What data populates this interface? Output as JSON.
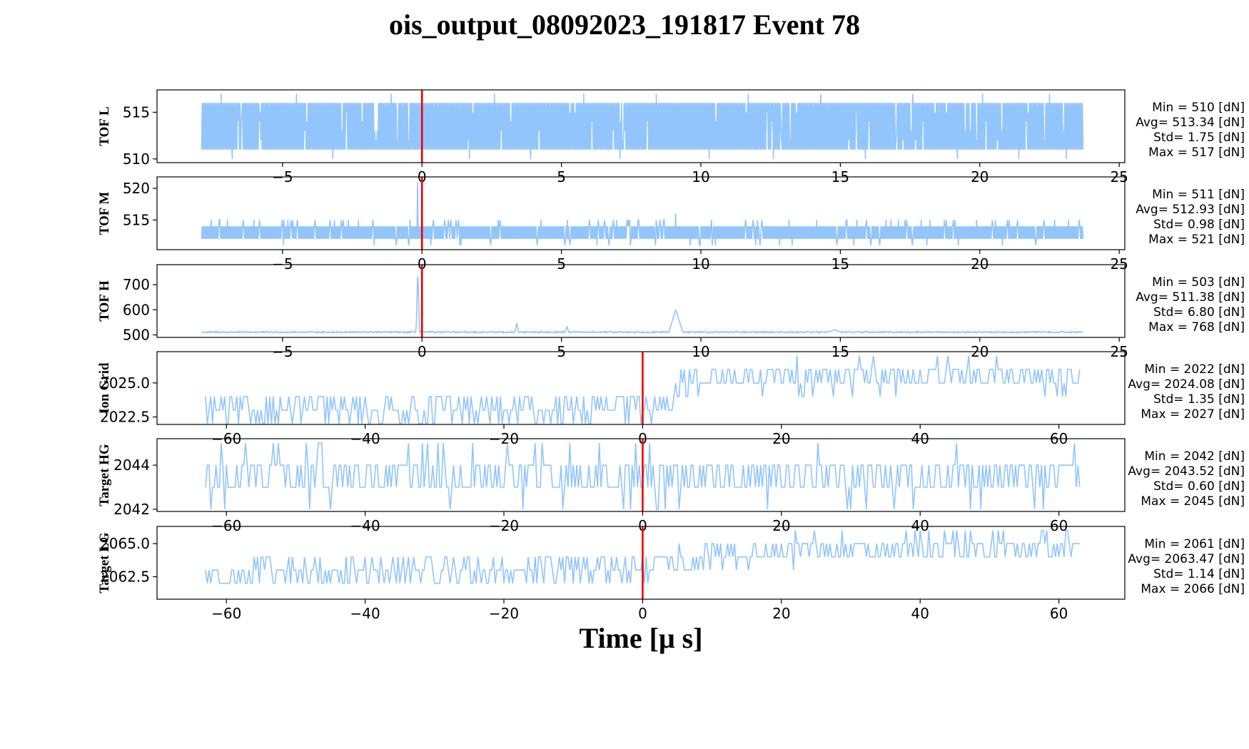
{
  "figure": {
    "title": "ois_output_08092023_191817 Event 78",
    "xlabel": "Time [μ s]"
  },
  "colors": {
    "trace": "#92c5fb",
    "marker": "#ee0000",
    "axes": "#000000",
    "background": "#ffffff"
  },
  "chart_data": [
    {
      "type": "line",
      "name": "tof-l",
      "ylabel": "TOF L",
      "xlim": [
        -9.5,
        25.2
      ],
      "ylim": [
        509.6,
        517.4
      ],
      "xticks": [
        -5,
        0,
        5,
        10,
        15,
        20,
        25
      ],
      "xtick_labels": [
        "−5",
        "0",
        "5",
        "10",
        "15",
        "20",
        "25"
      ],
      "yticks": [
        510,
        515
      ],
      "ytick_labels": [
        "510",
        "515"
      ],
      "marker_x": 0,
      "series": [
        {
          "x_range": [
            -7.9,
            23.7
          ],
          "band": [
            511,
            516
          ],
          "spikes_low": [
            -6.8,
            -3.2,
            1.7,
            3.9,
            7.1,
            10.3,
            12.6,
            15.9,
            19.2,
            21.4,
            23.1
          ],
          "spikes_high": [
            -7.2,
            -4.5,
            -1.1,
            2.6,
            5.8,
            8.4,
            11.7,
            14.3,
            17.6,
            20.1,
            22.5
          ],
          "min_x": -7.2,
          "max_x": 2.6
        }
      ],
      "stats": [
        "Min = 510 [dN]",
        "Avg= 513.34 [dN]",
        "Std= 1.75 [dN]",
        "Max = 517 [dN]"
      ]
    },
    {
      "type": "line",
      "name": "tof-m",
      "ylabel": "TOF M",
      "xlim": [
        -9.5,
        25.2
      ],
      "ylim": [
        510.3,
        521.8
      ],
      "xticks": [
        -5,
        0,
        5,
        10,
        15,
        20,
        25
      ],
      "xtick_labels": [
        "−5",
        "0",
        "5",
        "10",
        "15",
        "20",
        "25"
      ],
      "yticks": [
        515,
        520
      ],
      "ytick_labels": [
        "515",
        "520"
      ],
      "marker_x": 0,
      "series": [
        {
          "x_range": [
            -7.9,
            23.7
          ],
          "band": [
            512,
            514
          ],
          "spikes": [
            [
              -0.15,
              521
            ],
            [
              9.1,
              516
            ]
          ]
        }
      ],
      "stats": [
        "Min = 511 [dN]",
        "Avg= 512.93 [dN]",
        "Std= 0.98 [dN]",
        "Max = 521 [dN]"
      ]
    },
    {
      "type": "line",
      "name": "tof-h",
      "ylabel": "TOF H",
      "xlim": [
        -9.5,
        25.2
      ],
      "ylim": [
        490,
        780
      ],
      "xticks": [
        -5,
        0,
        5,
        10,
        15,
        20,
        25
      ],
      "xtick_labels": [
        "−5",
        "0",
        "5",
        "10",
        "15",
        "20",
        "25"
      ],
      "yticks": [
        500,
        600,
        700
      ],
      "ytick_labels": [
        "500",
        "600",
        "700"
      ],
      "marker_x": 0,
      "series": [
        {
          "x_range": [
            -7.9,
            23.7
          ],
          "baseline": 511,
          "spikes": [
            [
              -0.15,
              768
            ],
            [
              3.4,
              550
            ],
            [
              5.2,
              535
            ],
            [
              9.1,
              600
            ],
            [
              14.8,
              520
            ]
          ]
        }
      ],
      "stats": [
        "Min = 503 [dN]",
        "Avg= 511.38 [dN]",
        "Std= 6.80 [dN]",
        "Max = 768 [dN]"
      ]
    },
    {
      "type": "line",
      "name": "ion-grid",
      "ylabel": "Ion Grid",
      "xlim": [
        -70,
        69.5
      ],
      "ylim": [
        2021.95,
        2027.3
      ],
      "xticks": [
        -60,
        -40,
        -20,
        0,
        20,
        40,
        60
      ],
      "xtick_labels": [
        "−60",
        "−40",
        "−20",
        "0",
        "20",
        "40",
        "60"
      ],
      "yticks": [
        2022.5,
        2025.0
      ],
      "ytick_labels": [
        "2022.5",
        "2025.0"
      ],
      "marker_x": 0,
      "series": [
        {
          "x_range": [
            -63,
            63
          ],
          "segments": [
            [
              -63,
              2023
            ],
            [
              0,
              2023
            ],
            [
              9,
              2025.5
            ],
            [
              63,
              2025.5
            ]
          ],
          "min": 2022,
          "max": 2027
        }
      ],
      "stats": [
        "Min = 2022 [dN]",
        "Avg= 2024.08 [dN]",
        "Std= 1.35 [dN]",
        "Max = 2027 [dN]"
      ]
    },
    {
      "type": "line",
      "name": "target-hg",
      "ylabel": "Target HG",
      "xlim": [
        -70,
        69.5
      ],
      "ylim": [
        2041.9,
        2045.2
      ],
      "xticks": [
        -60,
        -40,
        -20,
        0,
        20,
        40,
        60
      ],
      "xtick_labels": [
        "−60",
        "−40",
        "−20",
        "0",
        "20",
        "40",
        "60"
      ],
      "yticks": [
        2042,
        2044
      ],
      "ytick_labels": [
        "2042",
        "2044"
      ],
      "marker_x": 0,
      "series": [
        {
          "x_range": [
            -63,
            63
          ],
          "segments": [
            [
              -63,
              2043.5
            ],
            [
              63,
              2043.5
            ]
          ],
          "min": 2042,
          "max": 2045
        }
      ],
      "stats": [
        "Min = 2042 [dN]",
        "Avg= 2043.52 [dN]",
        "Std= 0.60 [dN]",
        "Max = 2045 [dN]"
      ]
    },
    {
      "type": "line",
      "name": "target-lg",
      "ylabel": "Target LG",
      "xlim": [
        -70,
        69.5
      ],
      "ylim": [
        2060.8,
        2066.3
      ],
      "xticks": [
        -60,
        -40,
        -20,
        0,
        20,
        40,
        60
      ],
      "xtick_labels": [
        "−60",
        "−40",
        "−20",
        "0",
        "20",
        "40",
        "60"
      ],
      "yticks": [
        2062.5,
        2065.0
      ],
      "ytick_labels": [
        "2062.5",
        "2065.0"
      ],
      "marker_x": 0,
      "series": [
        {
          "x_range": [
            -63,
            63
          ],
          "segments": [
            [
              -63,
              2062.6
            ],
            [
              0,
              2063.2
            ],
            [
              20,
              2064.5
            ],
            [
              63,
              2065
            ]
          ],
          "min": 2061,
          "max": 2066
        }
      ],
      "stats": [
        "Min = 2061 [dN]",
        "Avg= 2063.47 [dN]",
        "Std= 1.14 [dN]",
        "Max = 2066 [dN]"
      ]
    }
  ]
}
